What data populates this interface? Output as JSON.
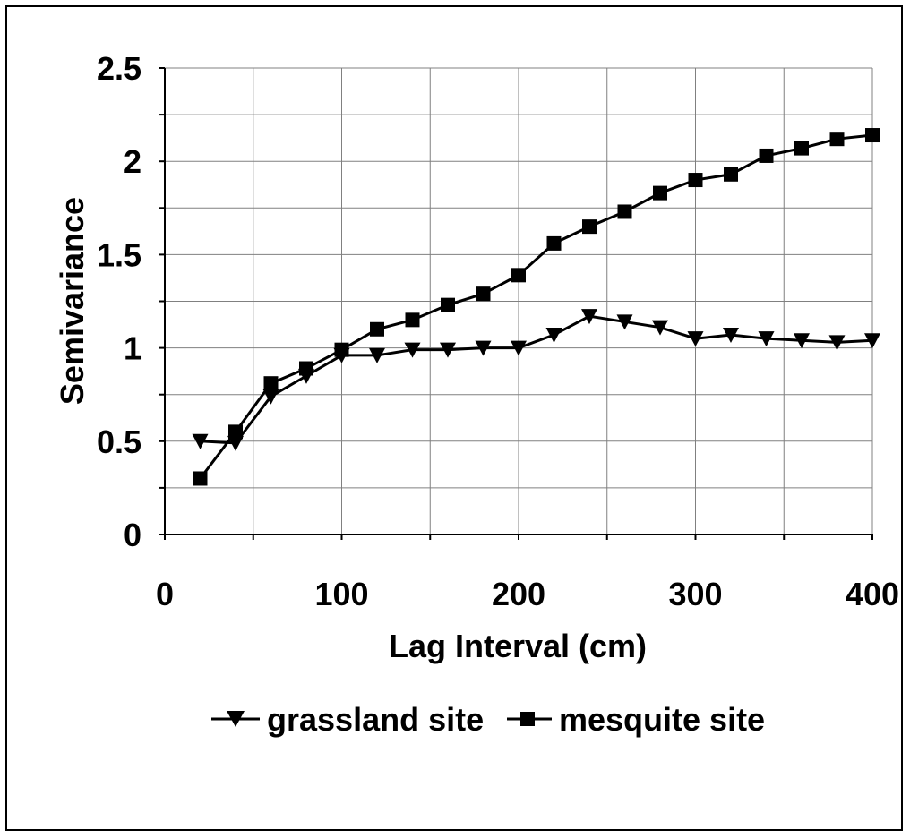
{
  "chart_data": {
    "type": "line",
    "title": "",
    "xlabel": "Lag Interval (cm)",
    "ylabel": "Semivariance",
    "xlim": [
      0,
      400
    ],
    "ylim": [
      0,
      2.5
    ],
    "x_ticks": [
      "0",
      "100",
      "200",
      "300",
      "400"
    ],
    "y_ticks": [
      "0",
      "0.5",
      "1",
      "1.5",
      "2",
      "2.5"
    ],
    "grid": true,
    "legend_position": "bottom",
    "series": [
      {
        "name": "grassland site",
        "marker": "triangle-down",
        "color": "#000000",
        "x": [
          20,
          40,
          60,
          80,
          100,
          120,
          140,
          160,
          180,
          200,
          220,
          240,
          260,
          280,
          300,
          320,
          340,
          360,
          380,
          400
        ],
        "y": [
          0.5,
          0.49,
          0.74,
          0.85,
          0.96,
          0.96,
          0.99,
          0.99,
          1.0,
          1.0,
          1.07,
          1.17,
          1.14,
          1.11,
          1.05,
          1.07,
          1.05,
          1.04,
          1.03,
          1.04
        ]
      },
      {
        "name": "mesquite site",
        "marker": "square",
        "color": "#000000",
        "x": [
          20,
          40,
          60,
          80,
          100,
          120,
          140,
          160,
          180,
          200,
          220,
          240,
          260,
          280,
          300,
          320,
          340,
          360,
          380,
          400
        ],
        "y": [
          0.3,
          0.55,
          0.81,
          0.89,
          0.99,
          1.1,
          1.15,
          1.23,
          1.29,
          1.39,
          1.56,
          1.65,
          1.73,
          1.83,
          1.9,
          1.93,
          2.03,
          2.07,
          2.12,
          2.14
        ]
      }
    ]
  }
}
